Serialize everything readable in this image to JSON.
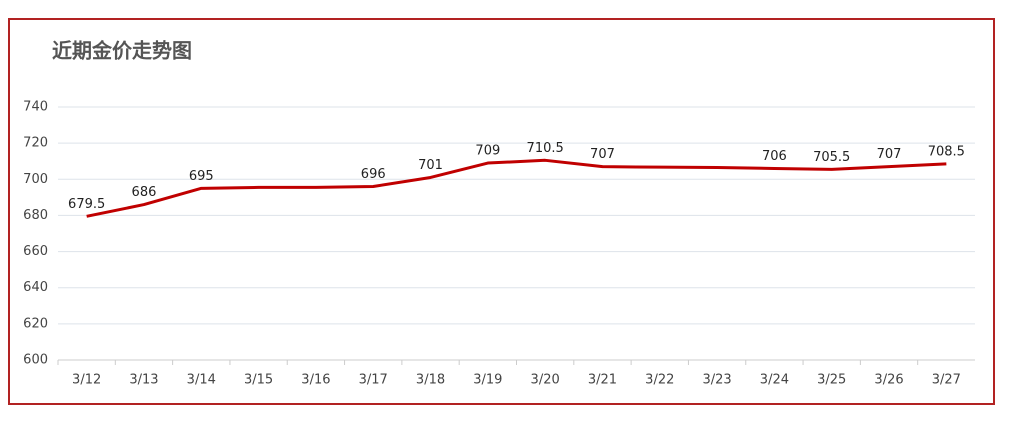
{
  "chart_data": {
    "type": "line",
    "title": "近期金价走势图",
    "categories": [
      "3/12",
      "3/13",
      "3/14",
      "3/15",
      "3/16",
      "3/17",
      "3/18",
      "3/19",
      "3/20",
      "3/21",
      "3/22",
      "3/23",
      "3/24",
      "3/25",
      "3/26",
      "3/27"
    ],
    "values": [
      679.5,
      686,
      695,
      695.5,
      695.5,
      696,
      701,
      709,
      710.5,
      707,
      706.7,
      706.5,
      706,
      705.5,
      707,
      708.5
    ],
    "value_labels": [
      "679.5",
      "686",
      "695",
      null,
      null,
      "696",
      "701",
      "709",
      "710.5",
      "707",
      null,
      null,
      "706",
      "705.5",
      "707",
      "708.5"
    ],
    "color": "#c00000",
    "ylim": [
      600,
      740
    ],
    "yticks": [
      600,
      620,
      640,
      660,
      680,
      700,
      720,
      740
    ],
    "grid": true
  }
}
